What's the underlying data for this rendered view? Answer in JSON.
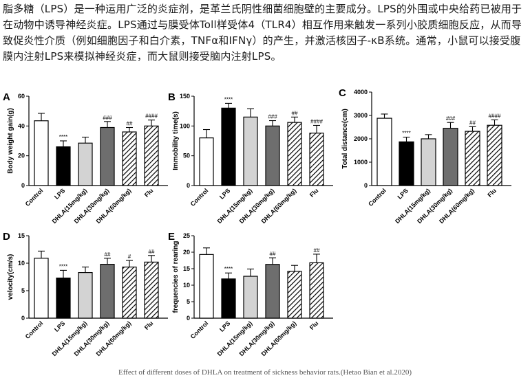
{
  "intro_text": "脂多糖（LPS）是一种运用广泛的炎症剂，是革兰氏阴性细菌细胞壁的主要成分。LPS的外围或中央给药已被用于在动物中诱导神经炎症。LPS通过与膜受体Toll样受体4（TLR4）相互作用来触发一系列小胶质细胞反应，从而导致促炎性介质（例如细胞因子和白介素，TNFα和IFNγ）的产生，并激活核因子-κB系统。通常，小鼠可以接受腹膜内注射LPS来模拟神经炎症，而大鼠则接受脑内注射LPS。",
  "caption": "Effect of different doses of DHLA on treatment of sickness behavior rats.(Hetao Bian et al.2020)",
  "bar_styles": [
    "white",
    "black",
    "lightgray",
    "gray",
    "hatch",
    "hatch"
  ],
  "colors": {
    "white": "#ffffff",
    "black": "#000000",
    "lightgray": "#d3d3d3",
    "gray": "#6e6e6e",
    "hatch": "#000000"
  },
  "chart_data": [
    {
      "panel": "A",
      "type": "bar",
      "ylabel": "Body weight gain(g)",
      "ylim": [
        0,
        60
      ],
      "yticks": [
        "0",
        "20",
        "40",
        "60"
      ],
      "categories": [
        "Control",
        "LPS",
        "DHLA(15mg/kg)",
        "DHLA(30mg/kg)",
        "DHLA(60mg/kg)",
        "Flu"
      ],
      "values": [
        43.5,
        26,
        28.5,
        39,
        36,
        40
      ],
      "errors": [
        5,
        4,
        4,
        4,
        3,
        4
      ],
      "significance": [
        "",
        "****",
        "",
        "###",
        "##",
        "####"
      ]
    },
    {
      "panel": "B",
      "type": "bar",
      "ylabel": "Immobility time(s)",
      "ylim": [
        0,
        150
      ],
      "yticks": [
        "0",
        "50",
        "100",
        "150"
      ],
      "categories": [
        "Control",
        "LPS",
        "DHLA(15mg/kg)",
        "DHLA(30mg/kg)",
        "DHLA(60mg/kg)",
        "Flu"
      ],
      "values": [
        80,
        130,
        115,
        100,
        106,
        88
      ],
      "errors": [
        14,
        8,
        14,
        9,
        9,
        13
      ],
      "significance": [
        "",
        "****",
        "",
        "###",
        "##",
        "####"
      ]
    },
    {
      "panel": "C",
      "type": "bar",
      "ylabel": "Total distance(cm)",
      "ylim": [
        0,
        4000
      ],
      "yticks": [
        "0",
        "1000",
        "2000",
        "3000",
        "4000"
      ],
      "categories": [
        "Control",
        "LPS",
        "DHLA(15mg/kg)",
        "DHLA(30mg/kg)",
        "DHLA(60mg/kg)",
        "Flu"
      ],
      "values": [
        2880,
        1870,
        2000,
        2450,
        2320,
        2580
      ],
      "errors": [
        180,
        200,
        180,
        250,
        200,
        230
      ],
      "significance": [
        "",
        "****",
        "",
        "###",
        "##",
        "####"
      ]
    },
    {
      "panel": "D",
      "type": "bar",
      "ylabel": "velocity(cm/s)",
      "ylim": [
        0,
        15
      ],
      "yticks": [
        "0",
        "5",
        "10",
        "15"
      ],
      "categories": [
        "Control",
        "LPS",
        "DHLA(15mg/kg)",
        "DHLA(30mg/kg)",
        "DHLA(60mg/kg)",
        "Flu"
      ],
      "values": [
        10.9,
        7.3,
        8.3,
        9.8,
        9.3,
        10.2
      ],
      "errors": [
        1.3,
        1.4,
        1.0,
        1.1,
        1.2,
        1.2
      ],
      "significance": [
        "",
        "****",
        "",
        "##",
        "#",
        "##"
      ]
    },
    {
      "panel": "E",
      "type": "bar",
      "ylabel": "frequencies of rearing",
      "ylim": [
        0,
        25
      ],
      "yticks": [
        "0",
        "5",
        "10",
        "15",
        "20",
        "25"
      ],
      "categories": [
        "Control",
        "LPS",
        "DHLA(15mg/kg)",
        "DHLA(30mg/kg)",
        "DHLA(60mg/kg)",
        "Flu"
      ],
      "values": [
        19.3,
        11.9,
        12.7,
        16.3,
        14.2,
        16.8
      ],
      "errors": [
        2,
        1.8,
        2.2,
        2,
        1.8,
        2.6
      ],
      "significance": [
        "",
        "****",
        "",
        "##",
        "",
        "##"
      ]
    }
  ]
}
